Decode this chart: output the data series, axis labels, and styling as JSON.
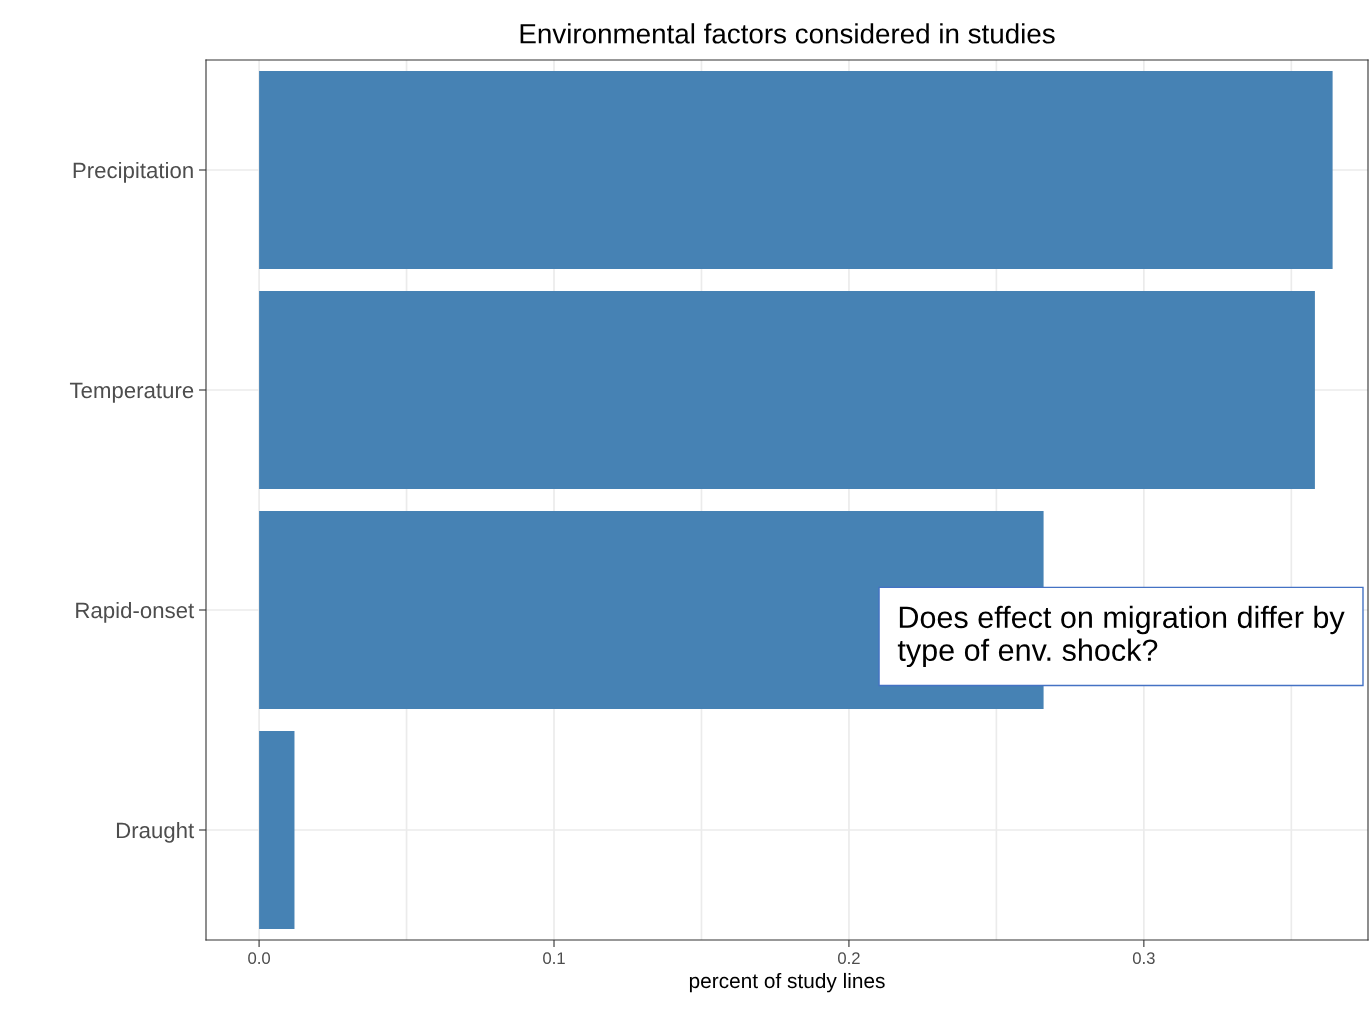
{
  "chart_data": {
    "type": "bar",
    "orientation": "horizontal",
    "title": "Environmental factors considered in studies",
    "xlabel": "percent of study lines",
    "categories": [
      "Precipitation",
      "Temperature",
      "Rapid-onset",
      "Draught"
    ],
    "values": [
      0.364,
      0.358,
      0.266,
      0.012
    ],
    "color": "#4682b4",
    "xlim": [
      -0.018,
      0.376
    ],
    "xticks": [
      {
        "value": 0.0,
        "label": "0.0"
      },
      {
        "value": 0.05,
        "label": null
      },
      {
        "value": 0.1,
        "label": "0.1"
      },
      {
        "value": 0.15,
        "label": null
      },
      {
        "value": 0.2,
        "label": "0.2"
      },
      {
        "value": 0.25,
        "label": null
      },
      {
        "value": 0.3,
        "label": "0.3"
      },
      {
        "value": 0.35,
        "label": null
      }
    ],
    "grid": true,
    "annotations": [
      "Does effect on migration differ by type of env. shock?"
    ]
  }
}
